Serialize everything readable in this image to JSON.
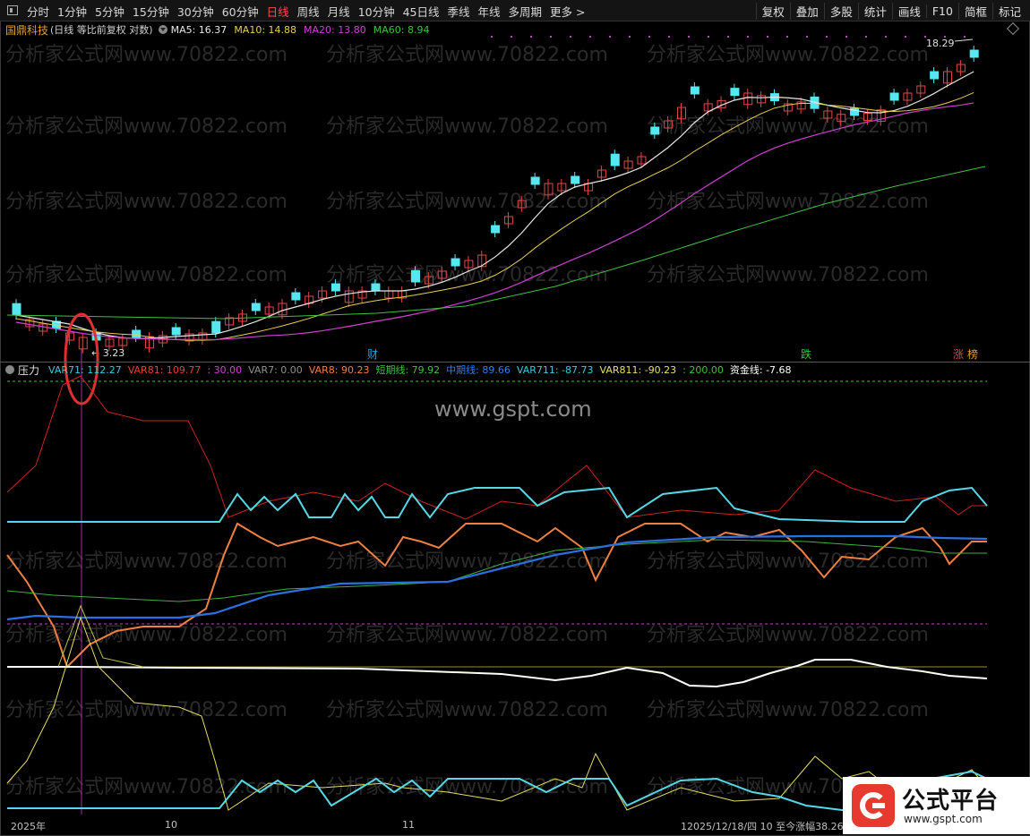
{
  "toolbar": {
    "tabs": [
      "分时",
      "1分钟",
      "5分钟",
      "15分钟",
      "30分钟",
      "60分钟",
      "日线",
      "周线",
      "月线",
      "10分钟",
      "45日线",
      "季线",
      "年线",
      "多周期",
      "更多 >"
    ],
    "active_tab": "日线",
    "tools": [
      "复权",
      "叠加",
      "多股",
      "统计",
      "画线",
      "F10",
      "简框",
      "标记"
    ]
  },
  "main_chart": {
    "stock_name": "国鼎科技",
    "mode": "(日线 等比前复权 对数)",
    "ma": [
      {
        "label": "MA5: 16.37",
        "color": "#e8e8e8"
      },
      {
        "label": "MA10: 14.88",
        "color": "#e8d050"
      },
      {
        "label": "MA20: 13.80",
        "color": "#d040d0"
      },
      {
        "label": "MA60: 8.94",
        "color": "#40c040"
      }
    ],
    "high_label": "18.29",
    "low_label": "3.23",
    "event_markers": [
      {
        "text": "财",
        "color": "#2aa0e0"
      },
      {
        "text": "跌",
        "color": "#40c040"
      },
      {
        "text": "涨",
        "color": "#e04040"
      },
      {
        "text": "榜",
        "color": "#e0a030"
      }
    ]
  },
  "indicator": {
    "name": "压力",
    "values": [
      {
        "label": "VAR71: 112.27",
        "color": "#40c8d8"
      },
      {
        "label": "VAR81: 109.77",
        "color": "#e04040"
      },
      {
        "label": ": 30.00",
        "color": "#d040d0"
      },
      {
        "label": "VAR7: 0.00",
        "color": "#909090"
      },
      {
        "label": "VAR8: 90.23",
        "color": "#f08040"
      },
      {
        "label": "短期线: 79.92",
        "color": "#40c040"
      },
      {
        "label": "中期线: 89.66",
        "color": "#2a80f0"
      },
      {
        "label": "VAR711: -87.73",
        "color": "#40c8d8"
      },
      {
        "label": "VAR811: -90.23",
        "color": "#e8e060"
      },
      {
        "label": ": 200.00",
        "color": "#40c040"
      },
      {
        "label": "资金线: -7.68",
        "color": "#ffffff"
      }
    ]
  },
  "time_axis": {
    "labels": [
      "2025年",
      "10",
      "11"
    ],
    "status": "12025/12/18/四 10 至今涨幅38.26"
  },
  "watermarks": {
    "line": "分析家公式网www.70822.com",
    "center": "www.gspt.com"
  },
  "badge": {
    "title": "公式平台",
    "url": "www.gspt.com"
  },
  "colors": {
    "up": "#e04848",
    "down": "#55e8f0",
    "background": "#000000"
  }
}
